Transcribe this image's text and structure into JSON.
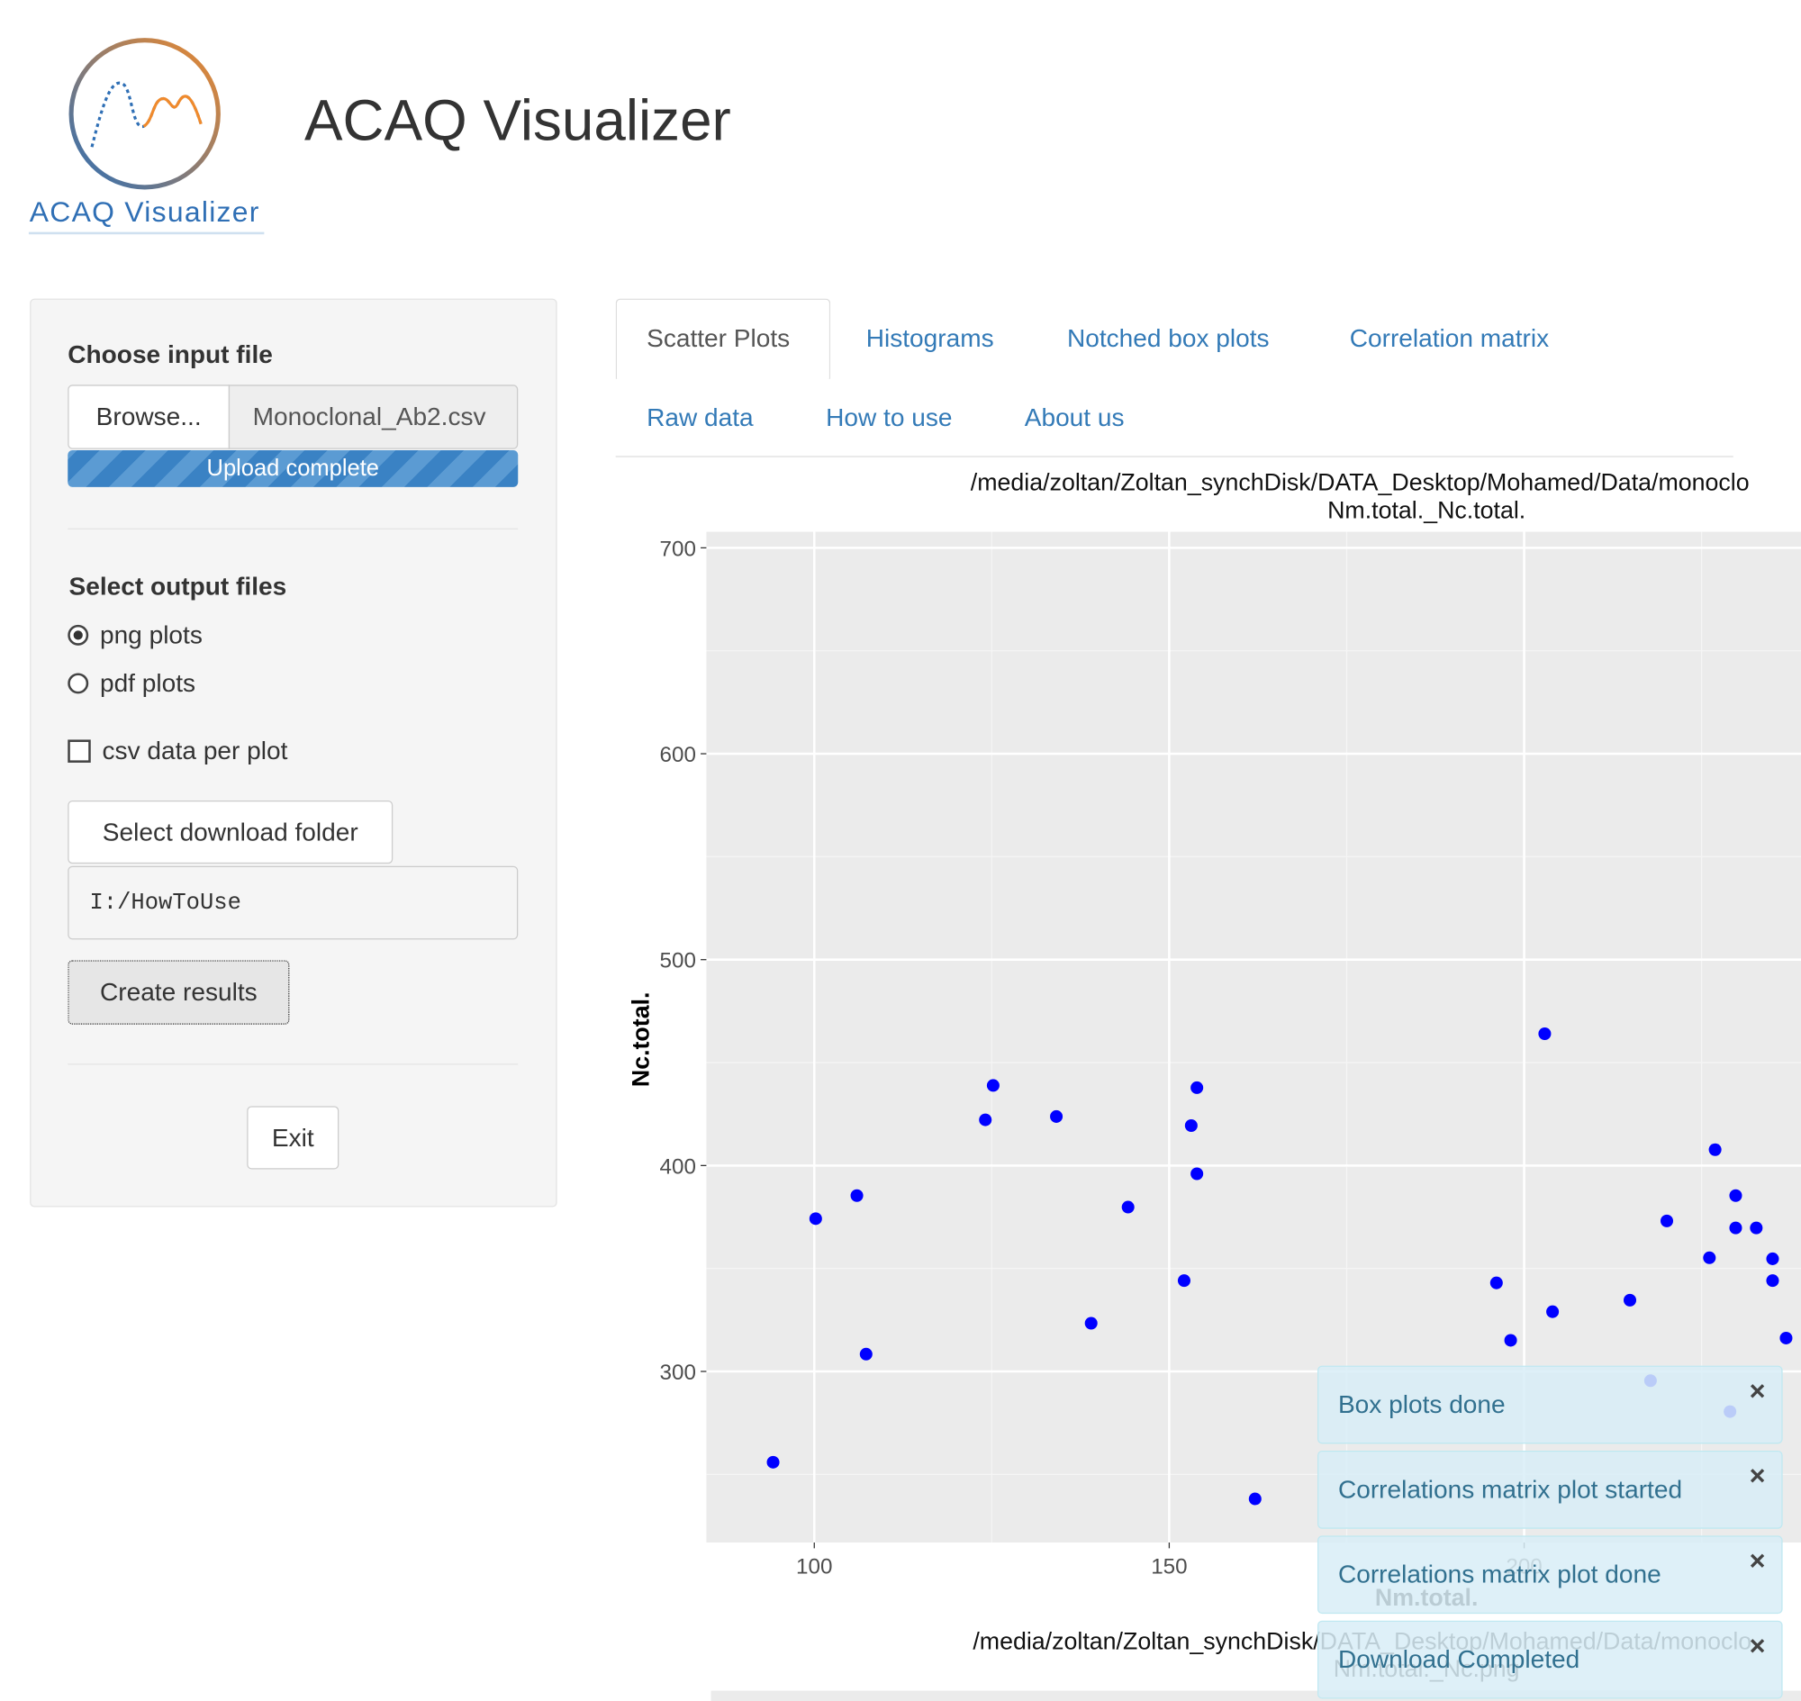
{
  "header": {
    "logo_text": "ACAQ Visualizer",
    "title": "ACAQ Visualizer"
  },
  "sidebar": {
    "input_label": "Choose input file",
    "browse": "Browse...",
    "file_name": "Monoclonal_Ab2.csv",
    "progress": "Upload complete",
    "output_label": "Select output files",
    "options": [
      "png plots",
      "pdf plots"
    ],
    "checkbox": "csv data per plot",
    "folder_button": "Select download folder",
    "folder_path": "I:/HowToUse",
    "create": "Create results",
    "exit": "Exit"
  },
  "tabs": [
    "Scatter Plots",
    "Histograms",
    "Notched box plots",
    "Correlation matrix",
    "Raw data",
    "How to use",
    "About us"
  ],
  "chart_data": {
    "type": "scatter",
    "title": "/media/zoltan/Zoltan_synchDisk/DATA_Desktop/Mohamed/Data/monoclo",
    "subtitle": "Nm.total._Nc.total.",
    "x_label": "Nm.total.",
    "y_label": "Nc.total.",
    "caption": [
      "/media/zoltan/Zoltan_synchDisk/DATA_Desktop/Mohamed/Data/monoclo",
      "Nm.total._Nc.png"
    ],
    "color": "#0000ff",
    "x": [
      94.2,
      100.2,
      106.0,
      107.3,
      124.1,
      125.2,
      134.1,
      139.0,
      144.2,
      152.1,
      153.1,
      153.9,
      153.9,
      162.1,
      196.1,
      198.1,
      202.9,
      204.0,
      214.9,
      220.1,
      226.1,
      226.9,
      229.8,
      229.8,
      232.7,
      235.0,
      235.0,
      236.9,
      217.8,
      229.0
    ],
    "values": [
      255.9,
      374.2,
      385.4,
      308.4,
      422.2,
      438.9,
      423.8,
      323.4,
      379.8,
      344.1,
      419.4,
      437.8,
      396.0,
      238.1,
      343.0,
      315.1,
      464.0,
      329.0,
      334.6,
      373.1,
      355.2,
      407.7,
      385.4,
      369.7,
      369.7,
      354.7,
      344.1,
      316.2,
      295.5,
      280.5
    ],
    "xlim": [
      84.8,
      239
    ],
    "ylim": [
      216.9,
      707.8
    ],
    "xticks": [
      100,
      150,
      200
    ],
    "yticks": [
      300,
      400,
      500,
      600,
      700
    ],
    "grid": true
  },
  "notifications": [
    "Box plots done",
    "Correlations matrix plot started",
    "Correlations matrix plot done",
    "Download Completed"
  ]
}
